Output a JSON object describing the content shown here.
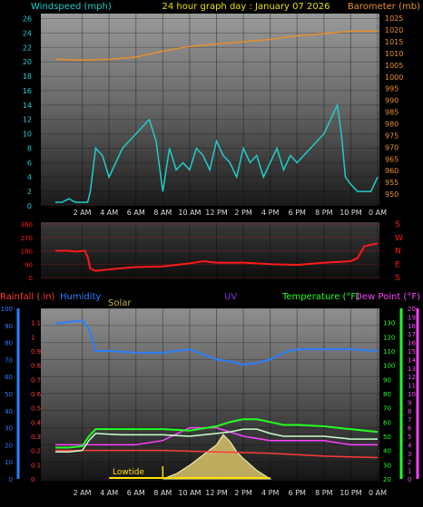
{
  "header": {
    "title": "24 hour graph day : January 07 2026",
    "left_label": "Windspeed (mph)",
    "right_label": "Barometer (mb)"
  },
  "colors": {
    "wind": "#22cccc",
    "barometer": "#e8902a",
    "title": "#e8e000",
    "direction": "#ff1a1a",
    "rain": "#ff3a3a",
    "humidity": "#2b7fff",
    "solar": "#c8b04a",
    "uv": "#8a2be2",
    "temperature": "#22ff22",
    "dewpoint": "#ff40ff",
    "tide": "#ffe000"
  },
  "chart_data": [
    {
      "type": "line",
      "name": "wind-barometer",
      "x_ticks": [
        "2 AM",
        "4 AM",
        "6 AM",
        "8 AM",
        "10 AM",
        "12 PM",
        "2 PM",
        "4 PM",
        "6 PM",
        "8 PM",
        "10 PM",
        "0 AM"
      ],
      "y_left": {
        "label": "Windspeed (mph)",
        "ylim": [
          0,
          26.7
        ],
        "ticks": [
          0,
          2,
          4,
          6,
          8,
          10,
          12,
          14,
          16,
          18,
          20,
          22,
          24,
          26
        ]
      },
      "y_right": {
        "label": "Barometer (mb)",
        "ylim": [
          945,
          1027
        ],
        "ticks": [
          950,
          955,
          960,
          965,
          970,
          975,
          980,
          985,
          990,
          995,
          1000,
          1005,
          1010,
          1015,
          1020,
          1025
        ]
      },
      "series": [
        {
          "name": "",
          "axis": "right",
          "x": [
            0,
            2,
            4,
            6,
            8,
            10,
            12,
            14,
            16,
            18,
            20,
            22,
            24
          ],
          "y": [
            1007.5,
            1007.2,
            1007.5,
            1008.5,
            1011,
            1013,
            1014,
            1015,
            1016,
            1017.5,
            1018.5,
            1019.5,
            1019.5
          ]
        },
        {
          "name": "",
          "axis": "left",
          "x": [
            0,
            0.5,
            1,
            1.5,
            2,
            2.4,
            2.6,
            3,
            3.5,
            4,
            4.5,
            5,
            5.5,
            6,
            6.5,
            7,
            7.5,
            8,
            8.5,
            9,
            9.5,
            10,
            10.5,
            11,
            11.5,
            12,
            12.5,
            13,
            13.5,
            14,
            14.5,
            15,
            15.5,
            16,
            16.5,
            17,
            17.5,
            18,
            18.5,
            19,
            19.5,
            20,
            20.5,
            21,
            21.3,
            21.6,
            22,
            22.5,
            23,
            23.5,
            24
          ],
          "y": [
            0.5,
            0.5,
            1,
            0.5,
            0.5,
            0.5,
            2,
            8,
            7,
            4,
            6,
            8,
            9,
            10,
            11,
            12,
            9,
            2,
            8,
            5,
            6,
            5,
            8,
            7,
            5,
            9,
            7,
            6,
            4,
            8,
            6,
            7,
            4,
            6,
            8,
            5,
            7,
            6,
            7,
            8,
            9,
            10,
            12,
            14,
            10,
            4,
            3,
            2,
            2,
            2,
            4
          ]
        }
      ]
    },
    {
      "type": "line",
      "name": "wind-direction",
      "y_left": {
        "ticks": [
          0,
          90,
          180,
          270,
          360
        ]
      },
      "y_right": {
        "ticks": [
          "S",
          "E",
          "N",
          "W",
          "S"
        ]
      },
      "series": [
        {
          "name": "",
          "x": [
            0,
            1,
            1.5,
            2.2,
            2.4,
            2.6,
            3,
            4,
            6,
            8,
            10,
            11,
            12,
            14,
            16,
            18,
            20,
            22,
            22.5,
            23,
            24
          ],
          "y": [
            180,
            180,
            175,
            180,
            140,
            60,
            45,
            55,
            70,
            75,
            95,
            110,
            100,
            100,
            90,
            85,
            100,
            110,
            130,
            210,
            230
          ]
        }
      ]
    },
    {
      "type": "line",
      "name": "humidity-temperature",
      "labels": {
        "rainfall": "Rainfall (.in)",
        "humidity": "Humidity",
        "solar": "Solar",
        "uv": "UV",
        "temperature": "Temperature (°F)",
        "dewpoint": "Dew Point (°F)",
        "tide": "Lowtide"
      },
      "y_humidity": {
        "ylim": [
          0,
          100
        ],
        "ticks": [
          0,
          10,
          20,
          30,
          40,
          50,
          60,
          70,
          80,
          90,
          100
        ]
      },
      "y_rain": {
        "ticks": [
          0,
          0.1,
          0.2,
          0.3,
          0.4,
          0.5,
          0.6,
          0.7,
          0.8,
          0.9,
          1,
          1.1
        ]
      },
      "y_temp": {
        "ylim": [
          20,
          140
        ],
        "ticks": [
          20,
          30,
          40,
          50,
          60,
          70,
          80,
          90,
          100,
          110,
          120,
          130
        ]
      },
      "y_uv": {
        "ticks": [
          0,
          1,
          2,
          3,
          4,
          5,
          6,
          7,
          8,
          9,
          10,
          11,
          12,
          13,
          14,
          15,
          16,
          17,
          18,
          19,
          20
        ]
      },
      "series": [
        {
          "name": "",
          "key": "humidity",
          "x": [
            0,
            1,
            2,
            2.5,
            3,
            4,
            6,
            8,
            10,
            12,
            13,
            14,
            15,
            16,
            17,
            18,
            20,
            22,
            24
          ],
          "y": [
            91,
            92,
            93,
            88,
            75,
            75,
            74,
            74,
            76,
            70,
            69,
            67,
            68,
            70,
            74,
            76,
            76,
            76,
            75
          ]
        },
        {
          "name": "",
          "key": "temperature",
          "x": [
            0,
            1,
            2,
            2.5,
            3,
            5,
            8,
            10,
            12,
            13,
            14,
            15,
            16,
            17,
            18,
            20,
            22,
            24
          ],
          "y": [
            42,
            42,
            43,
            50,
            55,
            55,
            55,
            54,
            57,
            60,
            62,
            62,
            60,
            58,
            58,
            57,
            55,
            53
          ]
        },
        {
          "name": "",
          "key": "dewpoint",
          "x": [
            0,
            1,
            2,
            2.5,
            3,
            5,
            8,
            10,
            12,
            13,
            14,
            15,
            16,
            17,
            18,
            20,
            22,
            24
          ],
          "y": [
            39,
            39,
            40,
            47,
            52,
            51,
            51,
            50,
            52,
            53,
            55,
            55,
            52,
            50,
            50,
            50,
            48,
            48
          ]
        },
        {
          "name": "",
          "key": "uv",
          "x": [
            0,
            6,
            8,
            10,
            12,
            14,
            16,
            18,
            20,
            22,
            24
          ],
          "y": [
            4,
            4,
            4.5,
            6,
            6,
            5,
            4.5,
            4.5,
            4.5,
            4,
            4
          ]
        },
        {
          "name": "",
          "key": "rain",
          "x": [
            0,
            4,
            8,
            12,
            16,
            20,
            24
          ],
          "y": [
            0.2,
            0.2,
            0.2,
            0.19,
            0.18,
            0.16,
            0.15
          ]
        },
        {
          "name": "",
          "key": "solar",
          "x": [
            8,
            9,
            10,
            11,
            12,
            12.5,
            13,
            13.5,
            14,
            15,
            16
          ],
          "y": [
            0,
            3,
            8,
            14,
            20,
            26,
            22,
            16,
            12,
            5,
            0
          ]
        }
      ]
    }
  ]
}
